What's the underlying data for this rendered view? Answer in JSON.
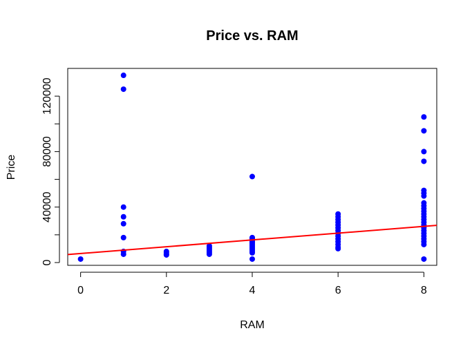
{
  "chart_data": {
    "type": "scatter",
    "title": "Price vs. RAM",
    "xlabel": "RAM",
    "ylabel": "Price",
    "xlim": [
      -0.3,
      8.3
    ],
    "ylim": [
      -2000,
      140000
    ],
    "xticks": [
      0,
      2,
      4,
      6,
      8
    ],
    "yticks": [
      0,
      40000,
      80000,
      120000
    ],
    "grid": false,
    "point_color": "#0000ff",
    "line_color": "#ff0000",
    "points": [
      {
        "x": 0,
        "y": 2500
      },
      {
        "x": 1,
        "y": 135000
      },
      {
        "x": 1,
        "y": 125000
      },
      {
        "x": 1,
        "y": 40000
      },
      {
        "x": 1,
        "y": 33000
      },
      {
        "x": 1,
        "y": 28000
      },
      {
        "x": 1,
        "y": 18000
      },
      {
        "x": 1,
        "y": 8000
      },
      {
        "x": 1,
        "y": 6000
      },
      {
        "x": 2,
        "y": 8000
      },
      {
        "x": 2,
        "y": 7000
      },
      {
        "x": 2,
        "y": 6000
      },
      {
        "x": 2,
        "y": 5500
      },
      {
        "x": 3,
        "y": 12000
      },
      {
        "x": 3,
        "y": 11000
      },
      {
        "x": 3,
        "y": 10000
      },
      {
        "x": 3,
        "y": 9000
      },
      {
        "x": 3,
        "y": 8000
      },
      {
        "x": 3,
        "y": 7000
      },
      {
        "x": 3,
        "y": 6000
      },
      {
        "x": 4,
        "y": 62000
      },
      {
        "x": 4,
        "y": 18000
      },
      {
        "x": 4,
        "y": 17000
      },
      {
        "x": 4,
        "y": 16000
      },
      {
        "x": 4,
        "y": 15000
      },
      {
        "x": 4,
        "y": 14000
      },
      {
        "x": 4,
        "y": 13000
      },
      {
        "x": 4,
        "y": 12000
      },
      {
        "x": 4,
        "y": 11000
      },
      {
        "x": 4,
        "y": 10000
      },
      {
        "x": 4,
        "y": 9000
      },
      {
        "x": 4,
        "y": 8000
      },
      {
        "x": 4,
        "y": 7000
      },
      {
        "x": 4,
        "y": 2500
      },
      {
        "x": 6,
        "y": 35000
      },
      {
        "x": 6,
        "y": 33000
      },
      {
        "x": 6,
        "y": 31000
      },
      {
        "x": 6,
        "y": 29000
      },
      {
        "x": 6,
        "y": 27000
      },
      {
        "x": 6,
        "y": 25000
      },
      {
        "x": 6,
        "y": 23000
      },
      {
        "x": 6,
        "y": 21000
      },
      {
        "x": 6,
        "y": 19000
      },
      {
        "x": 6,
        "y": 17000
      },
      {
        "x": 6,
        "y": 15000
      },
      {
        "x": 6,
        "y": 13000
      },
      {
        "x": 6,
        "y": 11000
      },
      {
        "x": 6,
        "y": 10000
      },
      {
        "x": 8,
        "y": 105000
      },
      {
        "x": 8,
        "y": 95000
      },
      {
        "x": 8,
        "y": 80000
      },
      {
        "x": 8,
        "y": 73000
      },
      {
        "x": 8,
        "y": 52000
      },
      {
        "x": 8,
        "y": 50000
      },
      {
        "x": 8,
        "y": 48000
      },
      {
        "x": 8,
        "y": 43000
      },
      {
        "x": 8,
        "y": 41000
      },
      {
        "x": 8,
        "y": 39000
      },
      {
        "x": 8,
        "y": 37000
      },
      {
        "x": 8,
        "y": 35000
      },
      {
        "x": 8,
        "y": 33000
      },
      {
        "x": 8,
        "y": 31000
      },
      {
        "x": 8,
        "y": 29000
      },
      {
        "x": 8,
        "y": 27000
      },
      {
        "x": 8,
        "y": 25000
      },
      {
        "x": 8,
        "y": 23000
      },
      {
        "x": 8,
        "y": 21000
      },
      {
        "x": 8,
        "y": 19000
      },
      {
        "x": 8,
        "y": 17000
      },
      {
        "x": 8,
        "y": 15000
      },
      {
        "x": 8,
        "y": 13000
      },
      {
        "x": 8,
        "y": 2500
      }
    ],
    "regression_line": {
      "intercept": 6500,
      "slope": 2450
    }
  }
}
